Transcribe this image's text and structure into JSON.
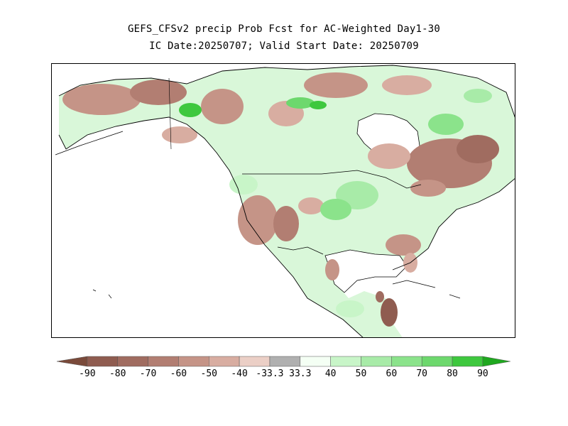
{
  "header": {
    "title": "GEFS_CFSv2 precip Prob Fcst for AC-Weighted Day1-30",
    "subtitle": "IC Date:20250707; Valid Start Date: 20250709"
  },
  "colors": {
    "below": [
      "#7a4a3a",
      "#8f5c50",
      "#a06c60",
      "#b27e72",
      "#c59487",
      "#d8ada1",
      "#ebcfc6"
    ],
    "near_normal": "#b0b0b0",
    "above": [
      "#f4fff4",
      "#c8f5c8",
      "#a8eba8",
      "#8be38b",
      "#6dd86d",
      "#3ec83e",
      "#1fa81f"
    ]
  },
  "legend": {
    "labels": [
      "-90",
      "-80",
      "-70",
      "-60",
      "-50",
      "-40",
      "-33.3",
      "33.3",
      "40",
      "50",
      "60",
      "70",
      "80",
      "90"
    ]
  }
}
